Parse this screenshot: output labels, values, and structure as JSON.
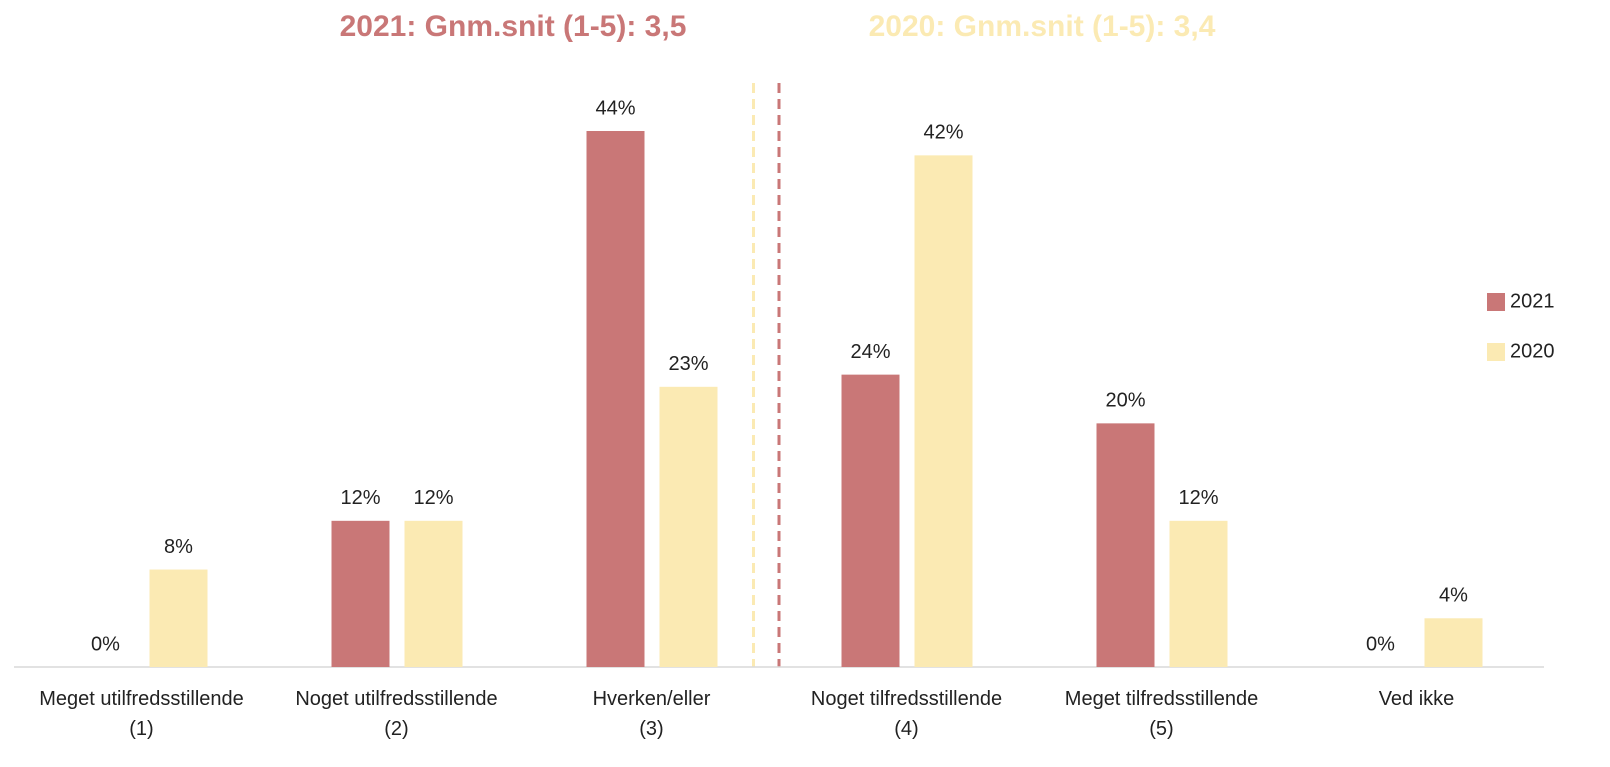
{
  "chart_data": {
    "type": "bar",
    "annotations": [
      {
        "text": "2021: Gnm.snit (1-5): 3,5",
        "value": 3.5,
        "color": "#c97777"
      },
      {
        "text": "2020: Gnm.snit (1-5): 3,4",
        "value": 3.4,
        "color": "#fbeab3"
      }
    ],
    "categories": [
      "Meget utilfredsstillende\n(1)",
      "Noget utilfredsstillende\n(2)",
      "Hverken/eller\n(3)",
      "Noget tilfredsstillende\n(4)",
      "Meget tilfredsstillende\n(5)",
      "Ved ikke"
    ],
    "series": [
      {
        "name": "2021",
        "color": "#c97777",
        "values": [
          0,
          12,
          44,
          24,
          20,
          0
        ],
        "value_labels": [
          "0%",
          "12%",
          "44%",
          "24%",
          "20%",
          "0%"
        ]
      },
      {
        "name": "2020",
        "color": "#fbeab3",
        "values": [
          8,
          12,
          23,
          42,
          12,
          4
        ],
        "value_labels": [
          "8%",
          "12%",
          "23%",
          "42%",
          "12%",
          "4%"
        ]
      }
    ],
    "ylim": [
      0,
      44
    ],
    "legend": "right"
  }
}
